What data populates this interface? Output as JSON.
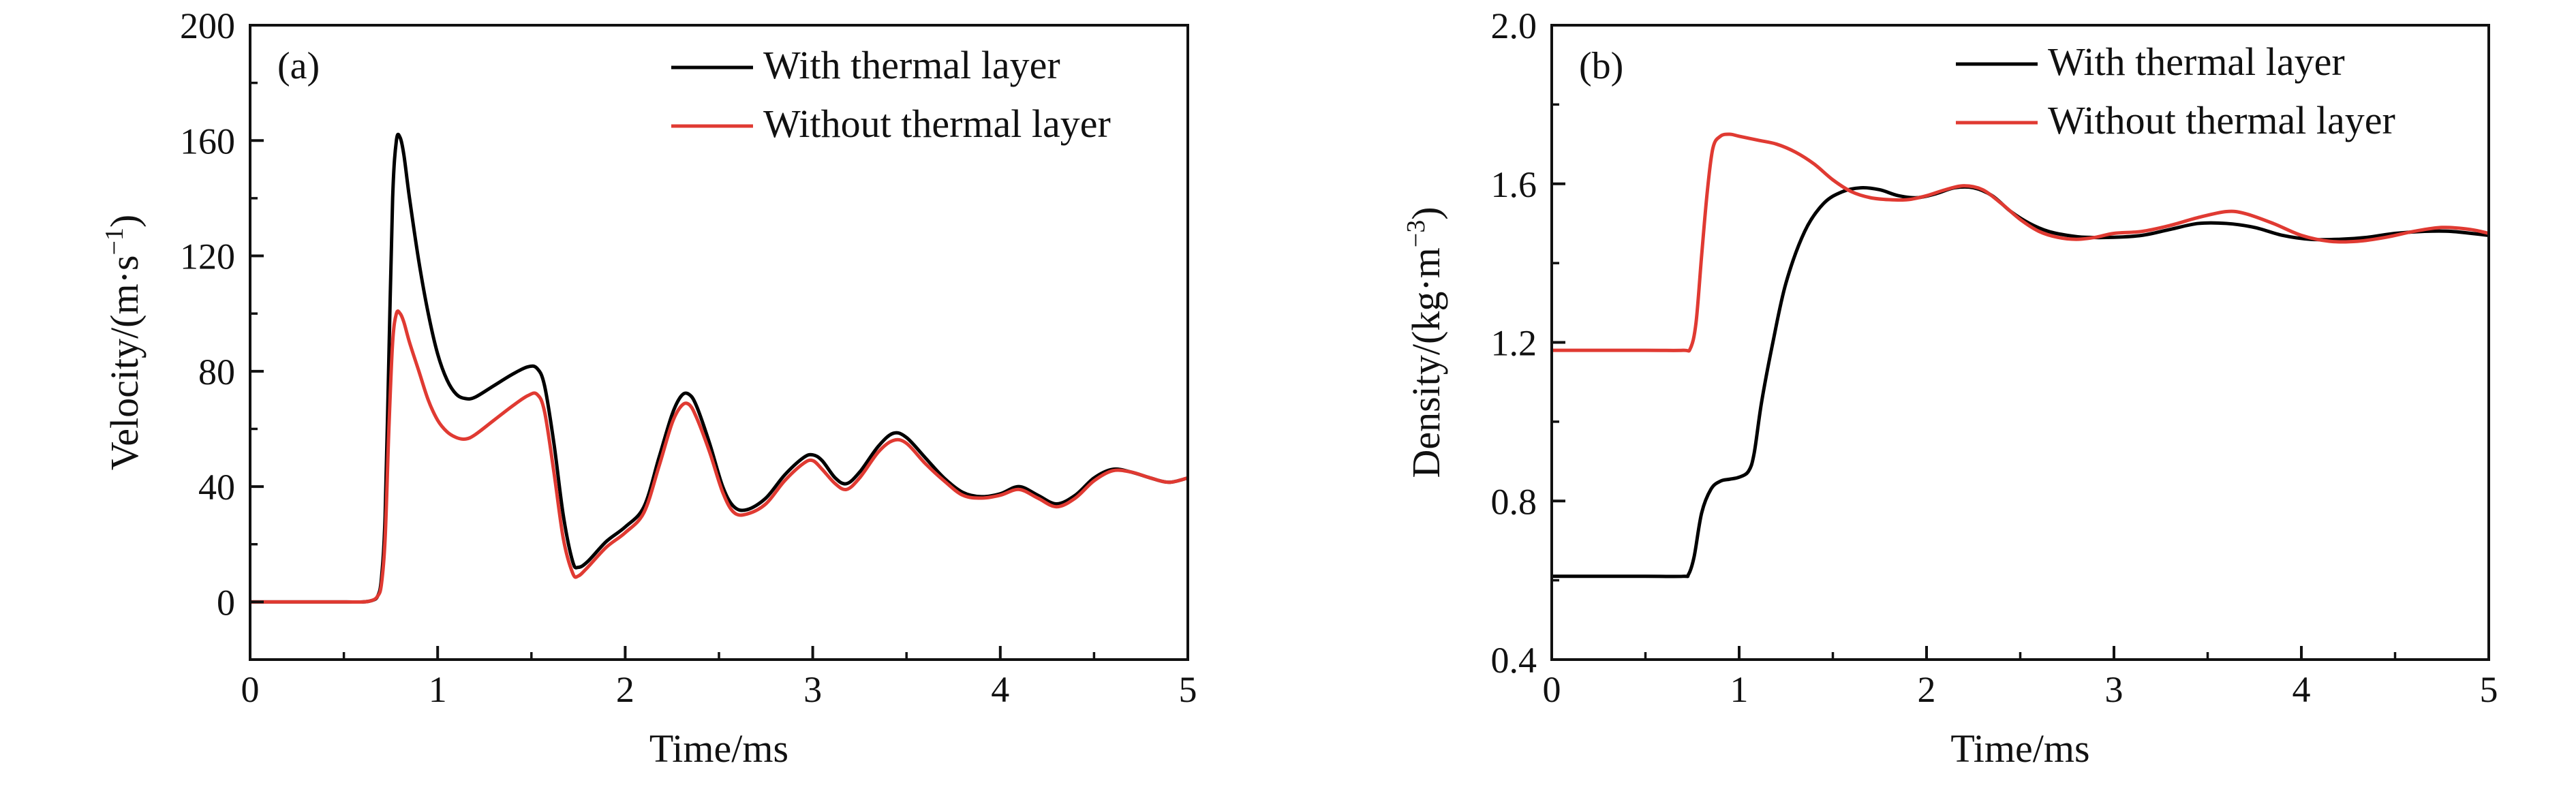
{
  "chart_data": [
    {
      "type": "line",
      "panel_label": "(a)",
      "xlabel": "Time/ms",
      "ylabel_main": "Velocity/(m·s",
      "ylabel_sup": "−1",
      "ylabel_close": ")",
      "xlim": [
        0,
        5
      ],
      "ylim": [
        -20,
        200
      ],
      "xticks": [
        0,
        1,
        2,
        3,
        4,
        5
      ],
      "yticks": [
        0,
        40,
        80,
        120,
        160,
        200
      ],
      "x_minor_step": 0.5,
      "y_minor_step": 20,
      "grid": false,
      "legend_position": "top-right",
      "series": [
        {
          "name": "With thermal layer",
          "color": "#000000",
          "points": [
            [
              0,
              0
            ],
            [
              0.3,
              0
            ],
            [
              0.5,
              0
            ],
            [
              0.6,
              0
            ],
            [
              0.65,
              0.5
            ],
            [
              0.68,
              2
            ],
            [
              0.7,
              8
            ],
            [
              0.72,
              30
            ],
            [
              0.74,
              85
            ],
            [
              0.76,
              140
            ],
            [
              0.78,
              160
            ],
            [
              0.8,
              161
            ],
            [
              0.82,
              155
            ],
            [
              0.85,
              140
            ],
            [
              0.9,
              118
            ],
            [
              0.95,
              100
            ],
            [
              1.0,
              86
            ],
            [
              1.05,
              77
            ],
            [
              1.1,
              72
            ],
            [
              1.15,
              70.5
            ],
            [
              1.2,
              71
            ],
            [
              1.3,
              75
            ],
            [
              1.4,
              79
            ],
            [
              1.48,
              81.5
            ],
            [
              1.53,
              81
            ],
            [
              1.57,
              75
            ],
            [
              1.62,
              55
            ],
            [
              1.67,
              30
            ],
            [
              1.72,
              14
            ],
            [
              1.75,
              12
            ],
            [
              1.8,
              14
            ],
            [
              1.9,
              21
            ],
            [
              2.0,
              26
            ],
            [
              2.1,
              33
            ],
            [
              2.18,
              50
            ],
            [
              2.25,
              65
            ],
            [
              2.3,
              71.5
            ],
            [
              2.34,
              72
            ],
            [
              2.38,
              68
            ],
            [
              2.45,
              55
            ],
            [
              2.52,
              40
            ],
            [
              2.58,
              33
            ],
            [
              2.65,
              32
            ],
            [
              2.75,
              36
            ],
            [
              2.85,
              44
            ],
            [
              2.95,
              50
            ],
            [
              3.0,
              51
            ],
            [
              3.05,
              49
            ],
            [
              3.12,
              43
            ],
            [
              3.18,
              41
            ],
            [
              3.25,
              45
            ],
            [
              3.35,
              54
            ],
            [
              3.43,
              58.5
            ],
            [
              3.5,
              57
            ],
            [
              3.6,
              50
            ],
            [
              3.7,
              43
            ],
            [
              3.8,
              38
            ],
            [
              3.9,
              36.5
            ],
            [
              4.0,
              37.5
            ],
            [
              4.1,
              40
            ],
            [
              4.2,
              37
            ],
            [
              4.3,
              34
            ],
            [
              4.4,
              37
            ],
            [
              4.5,
              43
            ],
            [
              4.6,
              46
            ],
            [
              4.7,
              45
            ],
            [
              4.8,
              43
            ],
            [
              4.9,
              41.5
            ],
            [
              5.0,
              43
            ]
          ]
        },
        {
          "name": "Without thermal layer",
          "color": "#e03a32",
          "points": [
            [
              0,
              0
            ],
            [
              0.3,
              0
            ],
            [
              0.5,
              0
            ],
            [
              0.6,
              0
            ],
            [
              0.65,
              0.5
            ],
            [
              0.68,
              2
            ],
            [
              0.7,
              6
            ],
            [
              0.72,
              22
            ],
            [
              0.74,
              60
            ],
            [
              0.76,
              90
            ],
            [
              0.78,
              100
            ],
            [
              0.8,
              100
            ],
            [
              0.82,
              97
            ],
            [
              0.85,
              90
            ],
            [
              0.9,
              80
            ],
            [
              0.95,
              70
            ],
            [
              1.0,
              63
            ],
            [
              1.05,
              59
            ],
            [
              1.1,
              57
            ],
            [
              1.15,
              56.5
            ],
            [
              1.2,
              58
            ],
            [
              1.3,
              63
            ],
            [
              1.4,
              68
            ],
            [
              1.48,
              71.5
            ],
            [
              1.53,
              72
            ],
            [
              1.57,
              66
            ],
            [
              1.62,
              45
            ],
            [
              1.67,
              22
            ],
            [
              1.72,
              10
            ],
            [
              1.75,
              9
            ],
            [
              1.8,
              12
            ],
            [
              1.9,
              19
            ],
            [
              2.0,
              24
            ],
            [
              2.1,
              31
            ],
            [
              2.18,
              47
            ],
            [
              2.25,
              62
            ],
            [
              2.3,
              68
            ],
            [
              2.34,
              68.5
            ],
            [
              2.38,
              64
            ],
            [
              2.45,
              52
            ],
            [
              2.52,
              38
            ],
            [
              2.58,
              31
            ],
            [
              2.65,
              30.5
            ],
            [
              2.75,
              34
            ],
            [
              2.85,
              42
            ],
            [
              2.95,
              48
            ],
            [
              3.0,
              49
            ],
            [
              3.05,
              46
            ],
            [
              3.12,
              41
            ],
            [
              3.18,
              39
            ],
            [
              3.25,
              43
            ],
            [
              3.35,
              52
            ],
            [
              3.43,
              56
            ],
            [
              3.5,
              55
            ],
            [
              3.6,
              48
            ],
            [
              3.7,
              42
            ],
            [
              3.8,
              37
            ],
            [
              3.9,
              36
            ],
            [
              4.0,
              37
            ],
            [
              4.1,
              39
            ],
            [
              4.2,
              36
            ],
            [
              4.3,
              33
            ],
            [
              4.4,
              36
            ],
            [
              4.5,
              42
            ],
            [
              4.6,
              45.5
            ],
            [
              4.7,
              45
            ],
            [
              4.8,
              43
            ],
            [
              4.9,
              41.5
            ],
            [
              5.0,
              43
            ]
          ]
        }
      ]
    },
    {
      "type": "line",
      "panel_label": "(b)",
      "xlabel": "Time/ms",
      "ylabel_main": "Density/(kg·m",
      "ylabel_sup": "−3",
      "ylabel_close": ")",
      "xlim": [
        0,
        5
      ],
      "ylim": [
        0.4,
        2.0
      ],
      "xticks": [
        0,
        1,
        2,
        3,
        4,
        5
      ],
      "yticks": [
        0.4,
        0.8,
        1.2,
        1.6,
        2.0
      ],
      "ytick_labels": [
        "0.4",
        "0.8",
        "1.2",
        "1.6",
        "2.0"
      ],
      "x_minor_step": 0.5,
      "y_minor_step": 0.2,
      "grid": false,
      "legend_position": "top-right",
      "series": [
        {
          "name": "With thermal layer",
          "color": "#000000",
          "points": [
            [
              0,
              0.61
            ],
            [
              0.5,
              0.61
            ],
            [
              0.7,
              0.61
            ],
            [
              0.73,
              0.615
            ],
            [
              0.76,
              0.66
            ],
            [
              0.8,
              0.77
            ],
            [
              0.85,
              0.83
            ],
            [
              0.9,
              0.85
            ],
            [
              0.95,
              0.855
            ],
            [
              1.0,
              0.86
            ],
            [
              1.05,
              0.875
            ],
            [
              1.08,
              0.92
            ],
            [
              1.12,
              1.05
            ],
            [
              1.18,
              1.2
            ],
            [
              1.25,
              1.35
            ],
            [
              1.35,
              1.48
            ],
            [
              1.45,
              1.55
            ],
            [
              1.55,
              1.58
            ],
            [
              1.65,
              1.59
            ],
            [
              1.75,
              1.585
            ],
            [
              1.85,
              1.57
            ],
            [
              1.95,
              1.565
            ],
            [
              2.05,
              1.575
            ],
            [
              2.15,
              1.59
            ],
            [
              2.25,
              1.59
            ],
            [
              2.35,
              1.57
            ],
            [
              2.45,
              1.53
            ],
            [
              2.55,
              1.5
            ],
            [
              2.65,
              1.48
            ],
            [
              2.75,
              1.47
            ],
            [
              2.85,
              1.465
            ],
            [
              3.0,
              1.465
            ],
            [
              3.15,
              1.47
            ],
            [
              3.3,
              1.485
            ],
            [
              3.45,
              1.5
            ],
            [
              3.6,
              1.5
            ],
            [
              3.75,
              1.49
            ],
            [
              3.9,
              1.47
            ],
            [
              4.05,
              1.46
            ],
            [
              4.2,
              1.46
            ],
            [
              4.35,
              1.465
            ],
            [
              4.5,
              1.475
            ],
            [
              4.65,
              1.48
            ],
            [
              4.8,
              1.48
            ],
            [
              5.0,
              1.47
            ]
          ]
        },
        {
          "name": "Without thermal layer",
          "color": "#e03a32",
          "points": [
            [
              0,
              1.18
            ],
            [
              0.5,
              1.18
            ],
            [
              0.7,
              1.18
            ],
            [
              0.74,
              1.185
            ],
            [
              0.77,
              1.25
            ],
            [
              0.8,
              1.42
            ],
            [
              0.83,
              1.58
            ],
            [
              0.86,
              1.69
            ],
            [
              0.9,
              1.72
            ],
            [
              0.95,
              1.725
            ],
            [
              1.0,
              1.72
            ],
            [
              1.1,
              1.71
            ],
            [
              1.2,
              1.7
            ],
            [
              1.3,
              1.68
            ],
            [
              1.4,
              1.65
            ],
            [
              1.5,
              1.61
            ],
            [
              1.6,
              1.58
            ],
            [
              1.7,
              1.565
            ],
            [
              1.8,
              1.56
            ],
            [
              1.9,
              1.56
            ],
            [
              2.0,
              1.57
            ],
            [
              2.1,
              1.585
            ],
            [
              2.2,
              1.595
            ],
            [
              2.3,
              1.585
            ],
            [
              2.4,
              1.55
            ],
            [
              2.5,
              1.51
            ],
            [
              2.6,
              1.48
            ],
            [
              2.7,
              1.465
            ],
            [
              2.8,
              1.46
            ],
            [
              2.9,
              1.465
            ],
            [
              3.0,
              1.475
            ],
            [
              3.15,
              1.48
            ],
            [
              3.3,
              1.495
            ],
            [
              3.45,
              1.515
            ],
            [
              3.6,
              1.53
            ],
            [
              3.7,
              1.525
            ],
            [
              3.85,
              1.5
            ],
            [
              4.0,
              1.47
            ],
            [
              4.15,
              1.455
            ],
            [
              4.3,
              1.455
            ],
            [
              4.45,
              1.465
            ],
            [
              4.6,
              1.48
            ],
            [
              4.75,
              1.49
            ],
            [
              4.9,
              1.485
            ],
            [
              5.0,
              1.475
            ]
          ]
        }
      ]
    }
  ]
}
